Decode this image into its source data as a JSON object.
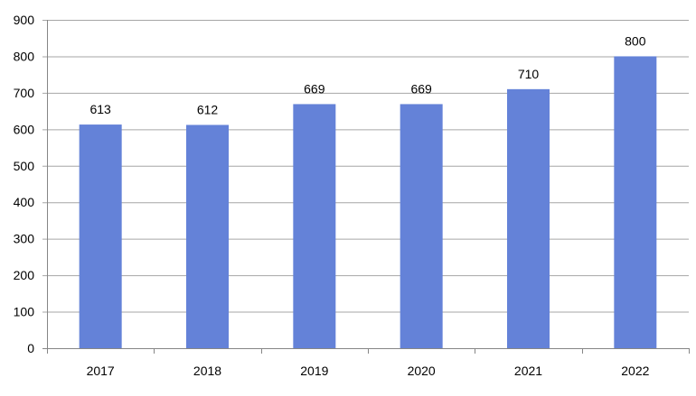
{
  "chart_data": {
    "type": "bar",
    "title": "",
    "xlabel": "",
    "ylabel": "",
    "categories": [
      "2017",
      "2018",
      "2019",
      "2020",
      "2021",
      "2022"
    ],
    "values": [
      613,
      612,
      669,
      669,
      710,
      800
    ],
    "data_labels": [
      "613",
      "612",
      "669",
      "669",
      "710",
      "800"
    ],
    "ylim": [
      0,
      900
    ],
    "yticks": [
      0,
      100,
      200,
      300,
      400,
      500,
      600,
      700,
      800,
      900
    ],
    "ytick_labels": [
      "0",
      "100",
      "200",
      "300",
      "400",
      "500",
      "600",
      "700",
      "800",
      "900"
    ],
    "grid": true,
    "legend": "none",
    "bar_color": "#6482d8",
    "grid_color": "#a6a6a6"
  }
}
